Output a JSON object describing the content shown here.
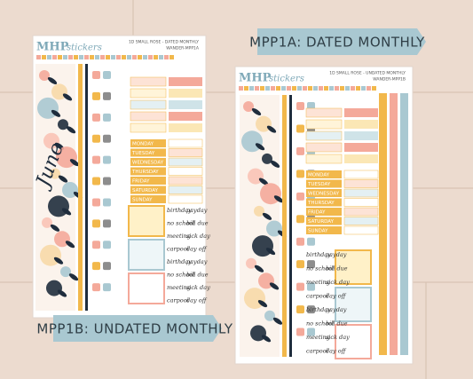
{
  "banners": {
    "dated": "MPP1A: DATED MONTHLY",
    "undated": "MPP1B: UNDATED MONTHLY"
  },
  "sheets": [
    {
      "logo": "MHP",
      "logo_script": "stickers",
      "title": "1D SMALL ROSE - DATED MONTHLY",
      "code": "WANDER-MPP1A",
      "month": "June",
      "weekdays": [
        "MONDAY",
        "TUESDAY",
        "WEDNESDAY",
        "THURSDAY",
        "FRIDAY",
        "SATURDAY",
        "SUNDAY"
      ],
      "phrases": [
        "birthday",
        "payday",
        "no school",
        "bill due",
        "meeting",
        "sick day",
        "carpool",
        "day off"
      ]
    },
    {
      "logo": "MHP",
      "logo_script": "stickers",
      "title": "1D SMALL ROSE - UNDATED MONTHLY",
      "code": "WANDER-MPP1B",
      "weekdays": [
        "MONDAY",
        "TUESDAY",
        "WEDNESDAY",
        "THURSDAY",
        "FRIDAY",
        "SATURDAY",
        "SUNDAY"
      ],
      "phrases": [
        "birthday",
        "payday",
        "no school",
        "bill due",
        "meeting",
        "sick day",
        "carpool",
        "day off"
      ]
    }
  ]
}
